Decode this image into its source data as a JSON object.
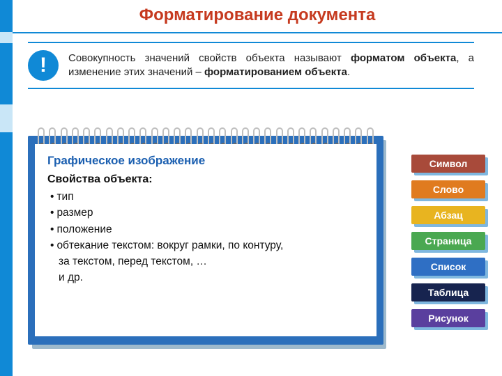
{
  "title": "Форматирование документа",
  "title_color": "#c63a1f",
  "accent_color": "#1089d6",
  "definition": {
    "icon": "!",
    "plain1": "Совокупность значений свойств объекта называют ",
    "bold1": "форматом объекта",
    "plain2": ", а изменение этих значений – ",
    "bold2": "форматированием объекта",
    "plain3": "."
  },
  "notepad": {
    "heading": "Графическое изображение",
    "subheading": "Свойства объекта:",
    "items": [
      "тип",
      "размер",
      "положение",
      "обтекание текстом: вокруг рамки, по контуру,"
    ],
    "cont1": "за текстом, перед текстом, …",
    "cont2": "и др.",
    "frame_color": "#2b6fbb",
    "shadow_color": "#9db9cc",
    "heading_color": "#1b5fb0"
  },
  "sidebar": [
    {
      "label": "Символ",
      "color": "#a84a3a"
    },
    {
      "label": "Слово",
      "color": "#e07b1f"
    },
    {
      "label": "Абзац",
      "color": "#e8b420"
    },
    {
      "label": "Страница",
      "color": "#4aa851"
    },
    {
      "label": "Список",
      "color": "#2f6fc4"
    },
    {
      "label": "Таблица",
      "color": "#17244f"
    },
    {
      "label": "Рисунок",
      "color": "#5a3f9e"
    }
  ]
}
